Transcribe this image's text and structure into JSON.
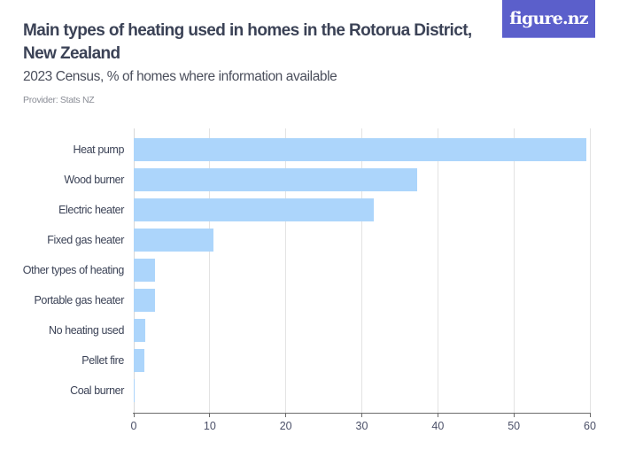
{
  "header": {
    "title": "Main types of heating used in homes in the Rotorua District, New Zealand",
    "subtitle": "2023 Census, % of homes where information available",
    "provider": "Provider: Stats NZ",
    "logo": "figure.nz"
  },
  "colors": {
    "bar": "#acd5fb",
    "logo_bg": "#5b5fcb",
    "title": "#3b4256"
  },
  "chart_data": {
    "type": "bar",
    "orientation": "horizontal",
    "title": "Main types of heating used in homes in the Rotorua District, New Zealand",
    "subtitle": "2023 Census, % of homes where information available",
    "xlabel": "",
    "ylabel": "",
    "categories": [
      "Heat pump",
      "Wood burner",
      "Electric heater",
      "Fixed gas heater",
      "Other types of heating",
      "Portable gas heater",
      "No heating used",
      "Pellet fire",
      "Coal burner"
    ],
    "values": [
      59.6,
      37.3,
      31.6,
      10.5,
      2.9,
      2.8,
      1.6,
      1.4,
      0.2
    ],
    "xlim": [
      0,
      60
    ],
    "xticks": [
      0,
      10,
      20,
      30,
      40,
      50,
      60
    ],
    "grid": true,
    "legend": "none"
  }
}
